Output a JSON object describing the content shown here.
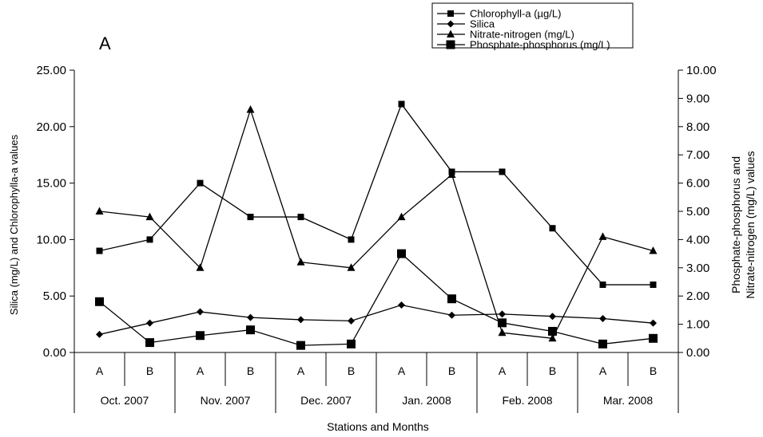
{
  "chart_data": {
    "type": "line",
    "panel_label": "A",
    "categories": [
      {
        "station": "A",
        "month": "Oct. 2007"
      },
      {
        "station": "B",
        "month": "Oct. 2007"
      },
      {
        "station": "A",
        "month": "Nov. 2007"
      },
      {
        "station": "B",
        "month": "Nov. 2007"
      },
      {
        "station": "A",
        "month": "Dec. 2007"
      },
      {
        "station": "B",
        "month": "Dec. 2007"
      },
      {
        "station": "A",
        "month": "Jan. 2008"
      },
      {
        "station": "B",
        "month": "Jan. 2008"
      },
      {
        "station": "A",
        "month": "Feb. 2008"
      },
      {
        "station": "B",
        "month": "Feb. 2008"
      },
      {
        "station": "A",
        "month": "Mar. 2008"
      },
      {
        "station": "B",
        "month": "Mar. 2008"
      }
    ],
    "months": [
      "Oct. 2007",
      "Nov. 2007",
      "Dec. 2007",
      "Jan. 2008",
      "Feb. 2008",
      "Mar. 2008"
    ],
    "xlabel": "Stations and Months",
    "ylabel_left": "Silica (mg/L) and Chlorophylla-a values",
    "ylabel_right_line1": "Phosphate-phosphorus and",
    "ylabel_right_line2": "Nitrate-nitrogen (mg/L) values",
    "ylim_left": [
      0,
      25
    ],
    "ylim_right": [
      0,
      10
    ],
    "yticks_left": [
      "0.00",
      "5.00",
      "10.00",
      "15.00",
      "20.00",
      "25.00"
    ],
    "yticks_right": [
      "0.00",
      "1.00",
      "2.00",
      "3.00",
      "4.00",
      "5.00",
      "6.00",
      "7.00",
      "8.00",
      "9.00",
      "10.00"
    ],
    "legend_position": "top-right",
    "series": [
      {
        "name": "Chlorophyll-a (µg/L)",
        "axis": "left",
        "marker": "square-small",
        "values": [
          9.0,
          10.0,
          15.0,
          12.0,
          12.0,
          10.0,
          22.0,
          16.0,
          16.0,
          11.0,
          6.0,
          6.0
        ]
      },
      {
        "name": "Silica",
        "axis": "left",
        "marker": "diamond",
        "values": [
          1.6,
          2.6,
          3.6,
          3.1,
          2.9,
          2.8,
          4.2,
          3.3,
          3.4,
          3.2,
          3.0,
          2.6
        ]
      },
      {
        "name": "Nitrate-nitrogen (mg/L)",
        "axis": "right",
        "marker": "triangle",
        "values": [
          5.0,
          4.8,
          3.0,
          8.6,
          3.2,
          3.0,
          4.8,
          6.3,
          0.7,
          0.5,
          4.1,
          3.6
        ]
      },
      {
        "name": "Phosphate-phosphorus (mg/L)",
        "axis": "right",
        "marker": "square-large",
        "values": [
          1.8,
          0.35,
          0.6,
          0.8,
          0.25,
          0.3,
          3.5,
          1.9,
          1.05,
          0.75,
          0.3,
          0.5
        ]
      }
    ]
  }
}
